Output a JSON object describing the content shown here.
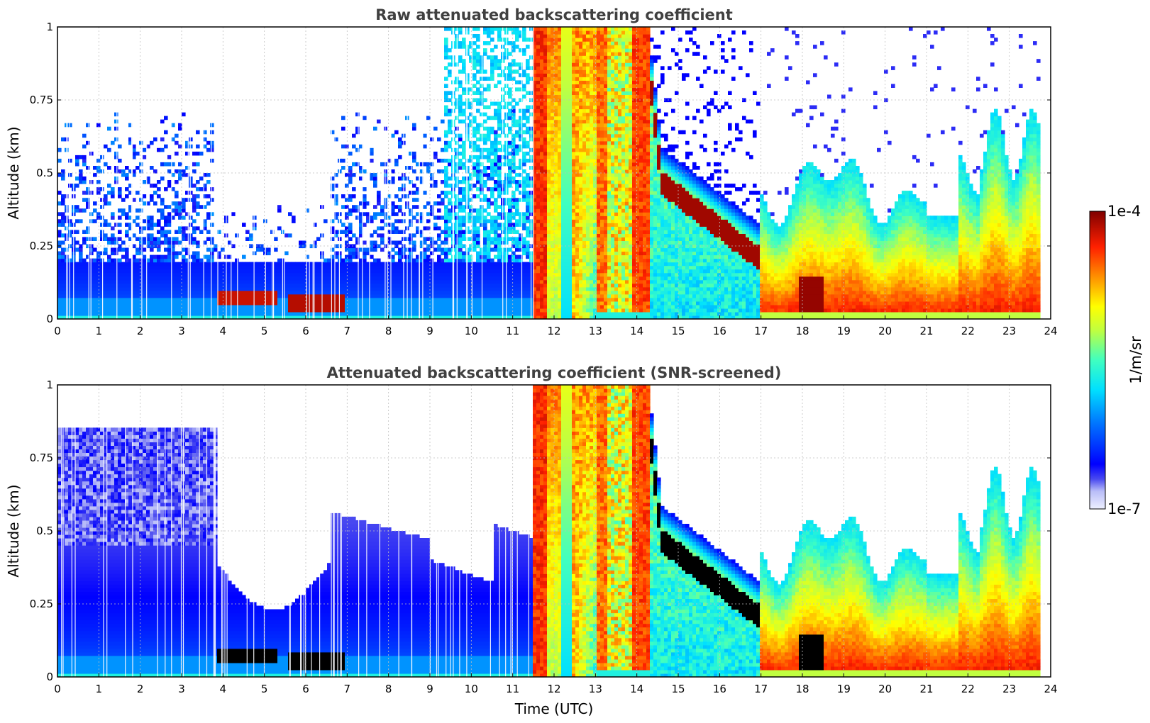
{
  "chart_data": [
    {
      "type": "heatmap",
      "title": "Raw attenuated backscattering coefficient",
      "xlabel": "",
      "ylabel": "Altitude (km)",
      "xlim": [
        0,
        24
      ],
      "ylim": [
        0,
        1
      ],
      "xticks": [
        "0",
        "1",
        "2",
        "3",
        "4",
        "5",
        "6",
        "7",
        "8",
        "9",
        "10",
        "11",
        "12",
        "13",
        "14",
        "15",
        "16",
        "17",
        "18",
        "19",
        "20",
        "21",
        "22",
        "23",
        "24"
      ],
      "yticks": [
        "0",
        "0.25",
        "0.5",
        "0.75",
        "1"
      ],
      "grid": true,
      "screened": false
    },
    {
      "type": "heatmap",
      "title": "Attenuated backscattering coefficient (SNR-screened)",
      "xlabel": "Time (UTC)",
      "ylabel": "Altitude (km)",
      "xlim": [
        0,
        24
      ],
      "ylim": [
        0,
        1
      ],
      "xticks": [
        "0",
        "1",
        "2",
        "3",
        "4",
        "5",
        "6",
        "7",
        "8",
        "9",
        "10",
        "11",
        "12",
        "13",
        "14",
        "15",
        "16",
        "17",
        "18",
        "19",
        "20",
        "21",
        "22",
        "23",
        "24"
      ],
      "yticks": [
        "0",
        "0.25",
        "0.5",
        "0.75",
        "1"
      ],
      "grid": true,
      "screened": true
    }
  ],
  "colorbar": {
    "label": "1/m/sr",
    "max_label": "1e-4",
    "min_label": "1e-7",
    "colormap": "jet"
  },
  "colors": {
    "title": "#404040",
    "grid": "#bfbfbf"
  }
}
